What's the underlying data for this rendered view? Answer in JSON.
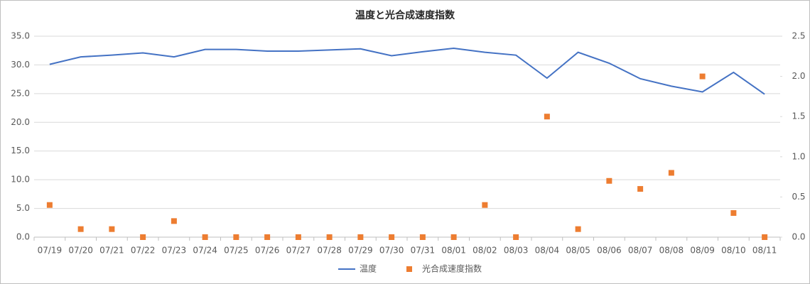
{
  "chart_data": {
    "type": "line",
    "title": "温度と光合成速度指数",
    "categories": [
      "07/19",
      "07/20",
      "07/21",
      "07/22",
      "07/23",
      "07/24",
      "07/25",
      "07/26",
      "07/27",
      "07/28",
      "07/29",
      "07/30",
      "07/31",
      "08/01",
      "08/02",
      "08/03",
      "08/04",
      "08/05",
      "08/06",
      "08/07",
      "08/08",
      "08/09",
      "08/10",
      "08/11"
    ],
    "series": [
      {
        "name": "温度",
        "type": "line",
        "color": "#4472c4",
        "values": [
          30.1,
          31.4,
          31.7,
          32.1,
          31.4,
          32.7,
          32.7,
          32.4,
          32.4,
          32.6,
          32.8,
          31.6,
          32.3,
          32.9,
          32.2,
          31.7,
          27.7,
          32.2,
          30.3,
          27.6,
          26.3,
          25.3,
          28.7,
          24.9
        ]
      },
      {
        "name": "光合成速度指数",
        "type": "scatter",
        "axis": "y2",
        "color": "#ed7d31",
        "values": [
          0.4,
          0.1,
          0.1,
          0,
          0.2,
          0,
          0,
          0,
          0,
          0,
          0,
          0,
          0,
          0,
          0.4,
          0,
          1.5,
          0.1,
          0.7,
          0.6,
          0.8,
          2.0,
          0.3,
          0
        ]
      }
    ],
    "ylim": [
      0,
      35
    ],
    "yticks": [
      {
        "value": 0,
        "label": "0.0"
      },
      {
        "value": 5,
        "label": "5.0"
      },
      {
        "value": 10,
        "label": "10.0"
      },
      {
        "value": 15,
        "label": "15.0"
      },
      {
        "value": 20,
        "label": "20.0"
      },
      {
        "value": 25,
        "label": "25.0"
      },
      {
        "value": 30,
        "label": "30.0"
      },
      {
        "value": 35,
        "label": "35.0"
      }
    ],
    "y2lim": [
      0,
      2.5
    ],
    "y2ticks": [
      {
        "value": 0,
        "label": "0.0"
      },
      0.5,
      {
        "value": 1,
        "label": "1.0"
      },
      1.5,
      {
        "value": 2,
        "label": "2.0"
      },
      2.5
    ],
    "grid": true,
    "legend": "bottom"
  }
}
